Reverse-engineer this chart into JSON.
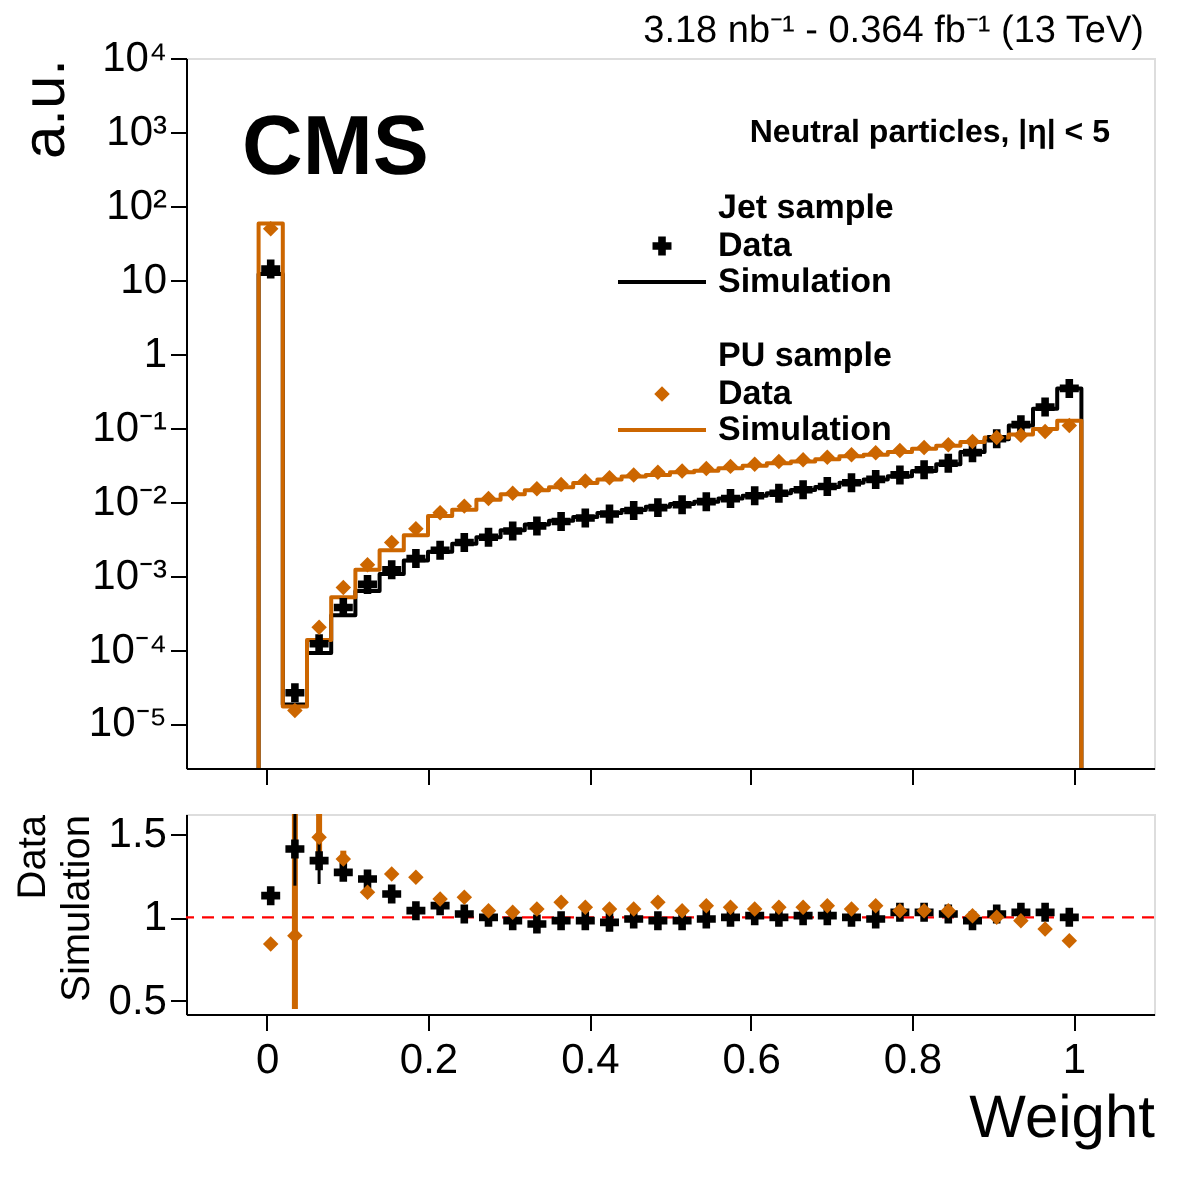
{
  "chart_data": [
    {
      "type": "histogram",
      "ylabel": "a.u.",
      "log": "y",
      "legend": "top right",
      "tick_labels": "y",
      "annotations": [
        "CMS",
        "3.18 nb⁻¹ - 0.364 fb⁻¹ (13 TeV)",
        "Neutral particles, |η| < 5",
        "Jet sample",
        "PU sample"
      ],
      "xlim": [
        -0.1,
        1.1
      ],
      "xticks": [
        {
          "value": 0,
          "label": null
        },
        {
          "value": 0.2,
          "label": null
        },
        {
          "value": 0.4,
          "label": null
        },
        {
          "value": 0.6,
          "label": null
        },
        {
          "value": 0.8,
          "label": null
        },
        {
          "value": 1,
          "label": null
        }
      ],
      "ylim": [
        2.5e-06,
        10000
      ],
      "yticks": [
        {
          "value": 1e-05,
          "label": "10⁻⁵"
        },
        {
          "value": 0.0001,
          "label": "10⁻⁴"
        },
        {
          "value": 0.001,
          "label": "10⁻³"
        },
        {
          "value": 0.01,
          "label": "10⁻²"
        },
        {
          "value": 0.1,
          "label": "10⁻¹"
        },
        1,
        10,
        {
          "value": 100,
          "label": "10²"
        },
        {
          "value": 1000,
          "label": "10³"
        },
        {
          "value": 10000,
          "label": "10⁴"
        }
      ],
      "bins": [
        -0.01,
        0.02,
        0.05,
        0.08,
        0.11,
        0.14,
        0.17,
        0.2,
        0.23,
        0.26,
        0.29,
        0.32,
        0.35,
        0.38,
        0.41,
        0.44,
        0.47,
        0.5,
        0.53,
        0.56,
        0.59,
        0.62,
        0.65,
        0.68,
        0.71,
        0.74,
        0.77,
        0.8,
        0.83,
        0.86,
        0.89,
        0.92,
        0.95,
        0.98,
        1.01
      ],
      "series": [
        {
          "name": "Data",
          "type": "scatter",
          "marker": "cross",
          "color": "#000000",
          "x": [
            0.005,
            0.035,
            0.065,
            0.095,
            0.125,
            0.155,
            0.185,
            0.215,
            0.245,
            0.275,
            0.305,
            0.335,
            0.365,
            0.395,
            0.425,
            0.455,
            0.485,
            0.515,
            0.545,
            0.575,
            0.605,
            0.635,
            0.665,
            0.695,
            0.725,
            0.755,
            0.785,
            0.815,
            0.845,
            0.875,
            0.905,
            0.935,
            0.965,
            0.995
          ],
          "values": [
            14,
            2.6e-05,
            0.00012,
            0.00037,
            0.00076,
            0.0012,
            0.0017,
            0.0022,
            0.0028,
            0.0033,
            0.004,
            0.0047,
            0.0054,
            0.006,
            0.0068,
            0.0076,
            0.0083,
            0.0091,
            0.01,
            0.011,
            0.012,
            0.013,
            0.0145,
            0.016,
            0.018,
            0.02,
            0.023,
            0.027,
            0.033,
            0.046,
            0.071,
            0.11,
            0.19,
            0.34
          ]
        },
        {
          "name": "Simulation",
          "type": "histogram",
          "color": "#000000",
          "values": [
            12,
            1.8e-05,
            9e-05,
            0.00029,
            0.00062,
            0.00105,
            0.0016,
            0.0021,
            0.0027,
            0.0033,
            0.0041,
            0.0049,
            0.0055,
            0.0062,
            0.007,
            0.0077,
            0.0085,
            0.0093,
            0.01,
            0.011,
            0.012,
            0.013,
            0.0144,
            0.0158,
            0.018,
            0.02,
            0.022,
            0.026,
            0.032,
            0.047,
            0.07,
            0.107,
            0.18,
            0.34
          ]
        },
        {
          "name": "Data",
          "type": "scatter",
          "marker": "diamond",
          "color": "#cc6600",
          "x": [
            0.005,
            0.035,
            0.065,
            0.095,
            0.125,
            0.155,
            0.185,
            0.215,
            0.245,
            0.275,
            0.305,
            0.335,
            0.365,
            0.395,
            0.425,
            0.455,
            0.485,
            0.515,
            0.545,
            0.575,
            0.605,
            0.635,
            0.665,
            0.695,
            0.725,
            0.755,
            0.785,
            0.815,
            0.845,
            0.875,
            0.905,
            0.935,
            0.965,
            0.995
          ],
          "values": [
            49,
            1.5e-05,
            0.0002,
            0.00069,
            0.0014,
            0.0028,
            0.0043,
            0.0071,
            0.0087,
            0.011,
            0.013,
            0.015,
            0.017,
            0.019,
            0.021,
            0.023,
            0.025,
            0.026,
            0.028,
            0.03,
            0.032,
            0.035,
            0.037,
            0.04,
            0.043,
            0.046,
            0.049,
            0.054,
            0.059,
            0.065,
            0.074,
            0.079,
            0.089,
            0.107
          ]
        },
        {
          "name": "Simulation",
          "type": "histogram",
          "color": "#cc6600",
          "values": [
            58,
            1.7e-05,
            0.000135,
            0.00051,
            0.0012,
            0.0022,
            0.0035,
            0.0064,
            0.0078,
            0.0106,
            0.0126,
            0.0143,
            0.0156,
            0.0179,
            0.02,
            0.0219,
            0.0229,
            0.025,
            0.0262,
            0.0283,
            0.0305,
            0.033,
            0.035,
            0.0374,
            0.041,
            0.043,
            0.047,
            0.052,
            0.057,
            0.064,
            0.074,
            0.081,
            0.096,
            0.124
          ]
        }
      ]
    },
    {
      "type": "scatter",
      "xlabel": "Weight",
      "ylabel": "Data\nSimulation",
      "xlim": [
        -0.1,
        1.1
      ],
      "xticks": [
        0,
        0.2,
        0.4,
        0.6,
        0.8,
        1
      ],
      "ylim": [
        0.42,
        1.62
      ],
      "yticks": [
        0.5,
        1,
        1.5
      ],
      "x": [
        0.005,
        0.035,
        0.065,
        0.095,
        0.125,
        0.155,
        0.185,
        0.215,
        0.245,
        0.275,
        0.305,
        0.335,
        0.365,
        0.395,
        0.425,
        0.455,
        0.485,
        0.515,
        0.545,
        0.575,
        0.605,
        0.635,
        0.665,
        0.695,
        0.725,
        0.755,
        0.785,
        0.815,
        0.845,
        0.875,
        0.905,
        0.935,
        0.965,
        0.995
      ],
      "ref_lines": [
        {
          "axis": "y",
          "value": 1,
          "color": "#ff0000",
          "line_style": "dashed"
        }
      ],
      "series": [
        {
          "marker": "cross",
          "color": "#000000",
          "values": [
            1.13,
            1.41,
            1.34,
            1.27,
            1.23,
            1.14,
            1.04,
            1.07,
            1.02,
            1.0,
            0.98,
            0.96,
            0.98,
            0.98,
            0.97,
            0.99,
            0.98,
            0.98,
            0.99,
            1.0,
            1.01,
            1.0,
            1.01,
            1.01,
            1.0,
            0.99,
            1.03,
            1.03,
            1.02,
            0.98,
            1.02,
            1.03,
            1.03,
            1.0
          ],
          "errors": [
            null,
            [
              1.19,
              1.62
            ],
            [
              1.2,
              1.47
            ],
            null,
            null,
            null,
            null,
            null,
            null,
            null,
            null,
            null,
            null,
            null,
            null,
            null,
            null,
            null,
            null,
            null,
            null,
            null,
            null,
            null,
            null,
            null,
            null,
            null,
            null,
            null,
            null,
            null,
            null,
            null
          ]
        },
        {
          "marker": "diamond",
          "color": "#cc6600",
          "values": [
            0.84,
            0.89,
            1.48,
            1.35,
            1.15,
            1.26,
            1.24,
            1.11,
            1.12,
            1.04,
            1.03,
            1.05,
            1.09,
            1.06,
            1.05,
            1.05,
            1.09,
            1.04,
            1.07,
            1.06,
            1.05,
            1.06,
            1.06,
            1.07,
            1.05,
            1.07,
            1.04,
            1.04,
            1.04,
            1.01,
            1.0,
            0.98,
            0.93,
            0.86
          ],
          "errors": [
            null,
            [
              0.45,
              1.62
            ],
            [
              1.3,
              1.62
            ],
            [
              1.3,
              1.4
            ],
            null,
            null,
            null,
            null,
            null,
            null,
            null,
            null,
            null,
            null,
            null,
            null,
            null,
            null,
            null,
            null,
            null,
            null,
            null,
            null,
            null,
            null,
            null,
            null,
            null,
            null,
            null,
            null,
            null,
            null
          ]
        }
      ]
    }
  ]
}
